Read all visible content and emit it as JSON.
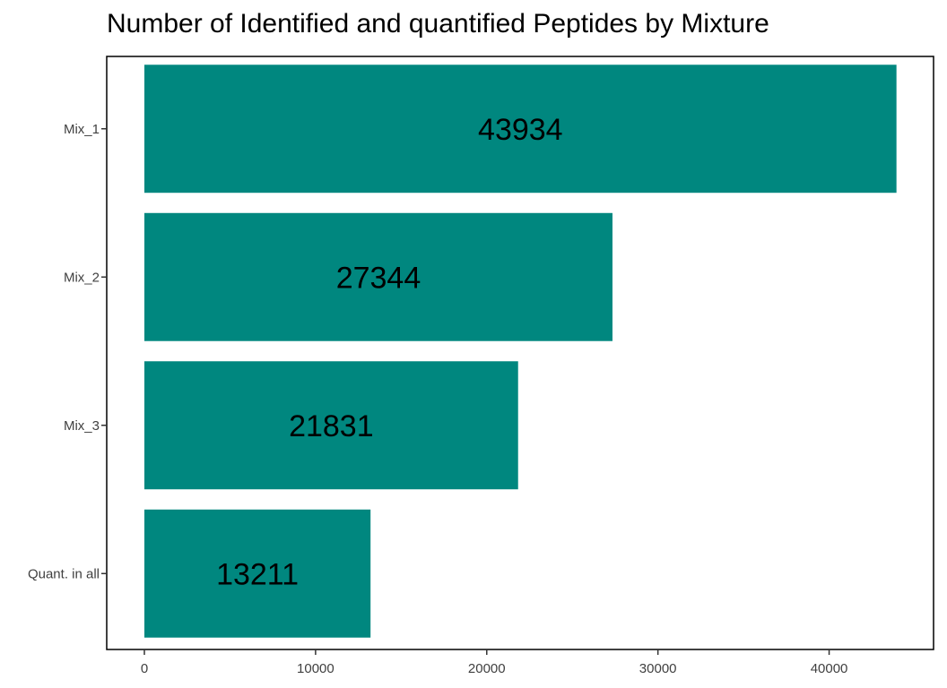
{
  "chart_data": {
    "type": "bar",
    "orientation": "horizontal",
    "title": "Number of Identified and quantified Peptides by Mixture",
    "xlabel": "",
    "ylabel": "",
    "categories": [
      "Mix_1",
      "Mix_2",
      "Mix_3",
      "Quant. in all"
    ],
    "values": [
      43934,
      27344,
      21831,
      13211
    ],
    "xlim": [
      -2200,
      46100
    ],
    "xticks": [
      0,
      10000,
      20000,
      30000,
      40000
    ],
    "bar_color": "#00877F",
    "grid": false,
    "legend": "none"
  }
}
